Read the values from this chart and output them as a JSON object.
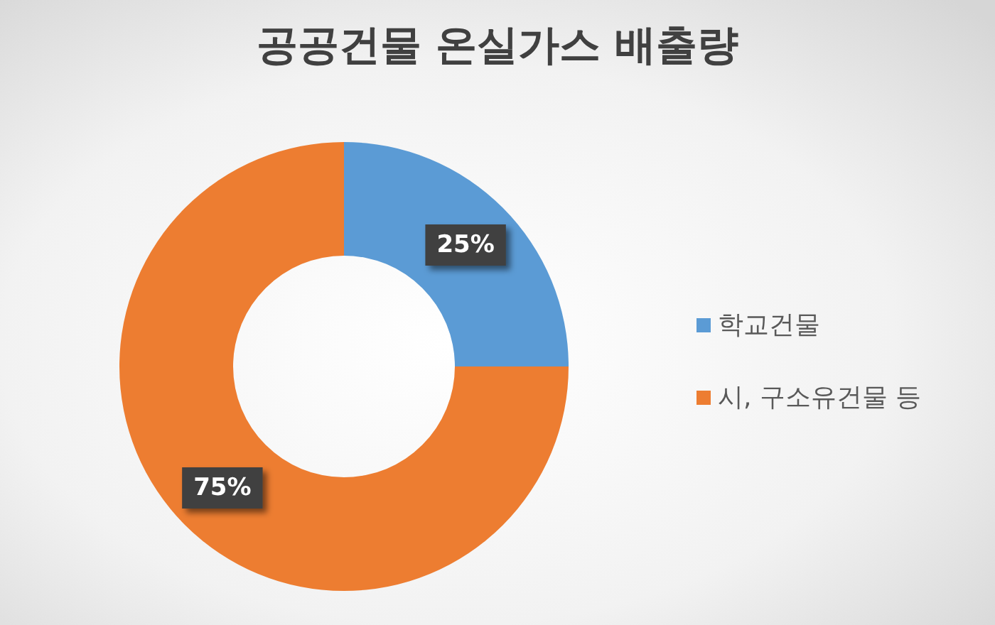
{
  "chart_data": {
    "type": "donut",
    "title": "공공건물 온실가스 배출량",
    "categories": [
      "학교건물",
      "시, 구소유건물 등"
    ],
    "values": [
      25,
      75
    ],
    "colors": [
      "#5b9bd5",
      "#ed7d31"
    ],
    "value_labels": [
      "25%",
      "75%"
    ],
    "legend": "right"
  }
}
